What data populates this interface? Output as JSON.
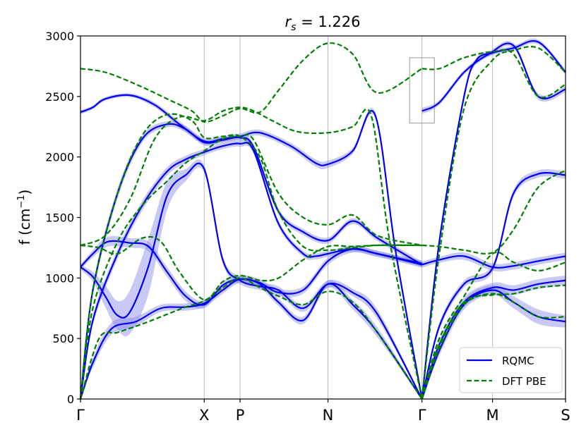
{
  "chart_data": {
    "type": "line",
    "title_prefix": "r",
    "title_subscript": "s",
    "title_suffix": " = 1.226",
    "xlabel": "",
    "ylabel_base": "f (cm",
    "ylabel_sup": "−1",
    "ylabel_close": ")",
    "ylim": [
      0,
      3000
    ],
    "y_ticks": [
      0,
      500,
      1000,
      1500,
      2000,
      2500,
      3000
    ],
    "x_ticks": [
      {
        "label": "Γ",
        "x": 0.0
      },
      {
        "label": "X",
        "x": 1.0
      },
      {
        "label": "P",
        "x": 1.29
      },
      {
        "label": "N",
        "x": 2.0
      },
      {
        "label": "Γ",
        "x": 2.76
      },
      {
        "label": "M",
        "x": 3.33
      },
      {
        "label": "S",
        "x": 3.92
      }
    ],
    "xlim": [
      0,
      3.92
    ],
    "vertical_grid": true,
    "legend_position": "bottom-right",
    "colors": {
      "rqmc": "#0000ee",
      "rqmc_band": "#8888ee",
      "dft": "#008000",
      "grid": "#bbbbbb",
      "inset_box": "#999999"
    },
    "inset_box": {
      "x": [
        2.66,
        2.86
      ],
      "y": [
        2280,
        2820
      ]
    },
    "series": [
      {
        "name": "RQMC",
        "style": "solid",
        "bands": [
          {
            "x": [
              0,
              0.1,
              0.2,
              0.4,
              0.6,
              0.8,
              1.0,
              1.15,
              1.29,
              1.45,
              1.7,
              1.9,
              2.0,
              2.2,
              2.38,
              2.55,
              2.76
            ],
            "y": [
              2370,
              2410,
              2480,
              2510,
              2430,
              2270,
              2130,
              2150,
              2170,
              2200,
              2090,
              1950,
              1940,
              2050,
              2350,
              1200,
              0
            ],
            "err": [
              18,
              15,
              15,
              15,
              20,
              25,
              25,
              25,
              25,
              25,
              25,
              30,
              30,
              25,
              25,
              30,
              10
            ]
          },
          {
            "x": [
              0,
              0.1,
              0.3,
              0.5,
              0.7,
              0.85,
              1.0,
              1.15,
              1.29,
              1.4,
              1.6,
              1.8,
              2.0,
              2.2,
              2.4,
              2.76
            ],
            "y": [
              0,
              900,
              1700,
              2150,
              2270,
              2230,
              2120,
              2140,
              2160,
              2080,
              1550,
              1380,
              1310,
              1470,
              1330,
              1110
            ],
            "err": [
              5,
              40,
              40,
              30,
              25,
              25,
              25,
              25,
              25,
              25,
              25,
              25,
              25,
              25,
              25,
              25
            ]
          },
          {
            "x": [
              0,
              0.1,
              0.3,
              0.5,
              0.7,
              0.85,
              1.0,
              1.15,
              1.29,
              1.4,
              1.6,
              1.8,
              1.9,
              2.0,
              2.2,
              2.4,
              2.76
            ],
            "y": [
              0,
              650,
              1200,
              1600,
              1880,
              1980,
              2040,
              2090,
              2110,
              2050,
              1450,
              1200,
              1180,
              1200,
              1240,
              1200,
              1110
            ],
            "err": [
              5,
              40,
              40,
              40,
              35,
              30,
              25,
              25,
              25,
              25,
              25,
              25,
              25,
              25,
              25,
              25,
              25
            ]
          },
          {
            "x": [
              0,
              0.1,
              0.22,
              0.4,
              0.55,
              0.7,
              0.85,
              1.0,
              1.15,
              1.29,
              1.45,
              1.6,
              1.8,
              2.0,
              2.2,
              2.4,
              2.76
            ],
            "y": [
              1090,
              1200,
              1300,
              1290,
              1260,
              1050,
              850,
              780,
              940,
              990,
              960,
              880,
              900,
              1140,
              1240,
              1200,
              1120
            ],
            "err": [
              20,
              30,
              40,
              40,
              40,
              40,
              40,
              30,
              30,
              30,
              30,
              30,
              30,
              30,
              30,
              25,
              25
            ]
          },
          {
            "x": [
              0,
              0.1,
              0.2,
              0.3,
              0.4,
              0.55,
              0.7,
              0.85,
              1.0,
              1.15,
              1.29,
              1.45,
              1.6,
              1.8,
              2.0,
              2.2,
              2.4,
              2.76
            ],
            "y": [
              1090,
              1010,
              850,
              690,
              720,
              1100,
              1680,
              1850,
              1900,
              1150,
              980,
              930,
              900,
              750,
              950,
              880,
              700,
              0
            ],
            "err": [
              20,
              40,
              90,
              120,
              180,
              230,
              120,
              50,
              30,
              30,
              30,
              30,
              30,
              30,
              30,
              30,
              40,
              10
            ]
          },
          {
            "x": [
              0,
              0.1,
              0.25,
              0.45,
              0.65,
              0.85,
              1.0,
              1.15,
              1.29,
              1.45,
              1.6,
              1.8,
              2.0,
              2.2,
              2.4,
              2.76
            ],
            "y": [
              0,
              300,
              580,
              640,
              750,
              760,
              790,
              900,
              990,
              950,
              800,
              650,
              950,
              780,
              550,
              0
            ],
            "err": [
              5,
              40,
              50,
              40,
              30,
              30,
              30,
              30,
              30,
              30,
              30,
              30,
              30,
              40,
              40,
              10
            ]
          },
          {
            "x": [
              2.76,
              2.9,
              3.1,
              3.3,
              3.5,
              3.7,
              3.92
            ],
            "y": [
              2380,
              2450,
              2700,
              2850,
              2920,
              2500,
              2560
            ],
            "err": [
              25,
              20,
              20,
              20,
              20,
              25,
              25
            ]
          },
          {
            "x": [
              2.76,
              2.9,
              3.1,
              3.2,
              3.33,
              3.5,
              3.7,
              3.92
            ],
            "y": [
              0,
              1300,
              2500,
              2800,
              2860,
              2900,
              2950,
              2700
            ],
            "err": [
              10,
              30,
              25,
              20,
              20,
              20,
              20,
              20
            ]
          },
          {
            "x": [
              2.76,
              2.9,
              3.1,
              3.33,
              3.5,
              3.7,
              3.92
            ],
            "y": [
              0,
              600,
              950,
              1080,
              1700,
              1860,
              1850
            ],
            "err": [
              10,
              30,
              30,
              30,
              30,
              30,
              30
            ]
          },
          {
            "x": [
              2.76,
              2.9,
              3.1,
              3.33,
              3.5,
              3.7,
              3.92
            ],
            "y": [
              1110,
              1150,
              1180,
              1090,
              1100,
              1140,
              1180
            ],
            "err": [
              25,
              25,
              30,
              30,
              30,
              30,
              30
            ]
          },
          {
            "x": [
              2.76,
              2.9,
              3.1,
              3.33,
              3.5,
              3.7,
              3.92
            ],
            "y": [
              0,
              450,
              800,
              920,
              900,
              950,
              980
            ],
            "err": [
              10,
              40,
              40,
              40,
              40,
              40,
              40
            ]
          },
          {
            "x": [
              2.76,
              2.9,
              3.1,
              3.33,
              3.5,
              3.7,
              3.92
            ],
            "y": [
              0,
              400,
              780,
              900,
              800,
              680,
              640
            ],
            "err": [
              10,
              40,
              40,
              40,
              50,
              60,
              50
            ]
          }
        ]
      },
      {
        "name": "DFT PBE",
        "style": "dashed",
        "bands": [
          {
            "x": [
              0,
              0.2,
              0.45,
              0.7,
              0.9,
              1.0,
              1.15,
              1.29,
              1.45,
              1.6,
              1.8,
              2.0,
              2.2,
              2.4,
              2.76
            ],
            "y": [
              2730,
              2700,
              2600,
              2480,
              2380,
              2290,
              2340,
              2400,
              2370,
              2550,
              2800,
              2940,
              2850,
              2530,
              2730
            ]
          },
          {
            "x": [
              0,
              0.2,
              0.4,
              0.6,
              0.8,
              1.0,
              1.15,
              1.29,
              1.4,
              1.55,
              1.75,
              2.0,
              2.2,
              2.35,
              2.5,
              2.76
            ],
            "y": [
              1270,
              1350,
              1650,
              2150,
              2330,
              2300,
              2380,
              2410,
              2380,
              2300,
              2210,
              2200,
              2250,
              2340,
              1300,
              0
            ]
          },
          {
            "x": [
              0,
              0.1,
              0.3,
              0.5,
              0.7,
              0.9,
              1.0,
              1.15,
              1.29,
              1.45,
              1.6,
              1.8,
              2.0,
              2.2,
              2.4,
              2.76
            ],
            "y": [
              0,
              900,
              1700,
              2180,
              2350,
              2300,
              2160,
              2170,
              2170,
              2000,
              1550,
              1260,
              1230,
              1250,
              1270,
              1270
            ]
          },
          {
            "x": [
              0,
              0.1,
              0.3,
              0.5,
              0.7,
              0.85,
              1.0,
              1.15,
              1.29,
              1.4,
              1.6,
              1.8,
              2.0,
              2.2,
              2.4,
              2.76
            ],
            "y": [
              0,
              750,
              1300,
              1600,
              1800,
              1950,
              2050,
              2150,
              2170,
              2140,
              1700,
              1500,
              1440,
              1520,
              1350,
              1270
            ]
          },
          {
            "x": [
              0,
              0.15,
              0.3,
              0.5,
              0.65,
              0.8,
              1.0,
              1.15,
              1.29,
              1.45,
              1.6,
              1.8,
              2.0,
              2.2,
              2.4,
              2.76
            ],
            "y": [
              1270,
              1250,
              1200,
              1330,
              1300,
              1050,
              820,
              970,
              1020,
              980,
              1000,
              1150,
              1260,
              1260,
              1270,
              1270
            ]
          },
          {
            "x": [
              0,
              0.15,
              0.3,
              0.5,
              0.7,
              0.85,
              1.0,
              1.15,
              1.29,
              1.45,
              1.6,
              1.8,
              2.0,
              2.2,
              2.4,
              2.76
            ],
            "y": [
              0,
              500,
              550,
              620,
              700,
              760,
              810,
              920,
              1000,
              920,
              850,
              780,
              890,
              800,
              550,
              0
            ]
          },
          {
            "x": [
              2.76,
              2.9,
              3.1,
              3.33,
              3.5,
              3.7,
              3.92
            ],
            "y": [
              2730,
              2730,
              2820,
              2870,
              2850,
              2500,
              2600
            ]
          },
          {
            "x": [
              2.76,
              2.9,
              3.1,
              3.33,
              3.5,
              3.7,
              3.92
            ],
            "y": [
              0,
              1200,
              2400,
              2800,
              2880,
              2900,
              2700
            ]
          },
          {
            "x": [
              2.76,
              2.9,
              3.1,
              3.33,
              3.5,
              3.7,
              3.92
            ],
            "y": [
              1270,
              1260,
              1230,
              1210,
              1400,
              1750,
              1890
            ]
          },
          {
            "x": [
              2.76,
              2.9,
              3.1,
              3.33,
              3.5,
              3.7,
              3.92
            ],
            "y": [
              0,
              500,
              850,
              1200,
              1130,
              1060,
              1130
            ]
          },
          {
            "x": [
              2.76,
              2.9,
              3.1,
              3.33,
              3.5,
              3.7,
              3.92
            ],
            "y": [
              0,
              450,
              800,
              860,
              870,
              920,
              940
            ]
          },
          {
            "x": [
              2.76,
              2.9,
              3.1,
              3.33,
              3.5,
              3.7,
              3.92
            ],
            "y": [
              0,
              420,
              780,
              870,
              800,
              680,
              680
            ]
          }
        ]
      }
    ]
  }
}
